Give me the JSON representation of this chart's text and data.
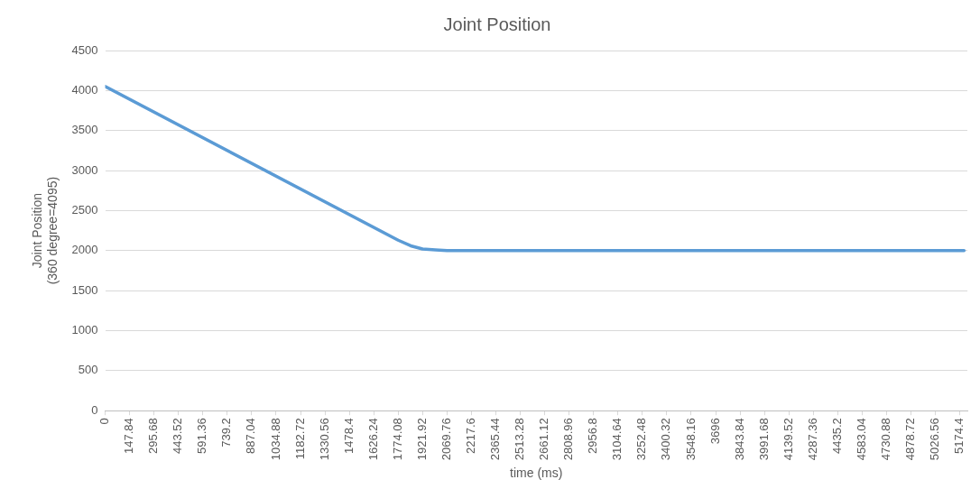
{
  "chart_data": {
    "type": "line",
    "title": "Joint Position",
    "xlabel": "time (ms)",
    "ylabel": "Joint Position\n(360 degree=4095)",
    "series": [
      {
        "color": "#5b9bd5",
        "x": [
          0,
          1774,
          1850,
          1922,
          2000,
          2070,
          5200
        ],
        "values": [
          4050,
          2130,
          2060,
          2020,
          2010,
          2000,
          2000
        ]
      }
    ],
    "xlim": [
      0,
      5220
    ],
    "xticks": [
      0,
      147.84,
      295.68,
      443.52,
      591.36,
      739.2,
      887.04,
      1034.88,
      1182.72,
      1330.56,
      1478.4,
      1626.24,
      1774.08,
      1921.92,
      2069.76,
      2217.6,
      2365.44,
      2513.28,
      2661.12,
      2808.96,
      2956.8,
      3104.64,
      3252.48,
      3400.32,
      3548.16,
      3696,
      3843.84,
      3991.68,
      4139.52,
      4287.36,
      4435.2,
      4583.04,
      4730.88,
      4878.72,
      5026.56,
      5174.4
    ],
    "ylim": [
      0,
      4500
    ],
    "yticks": [
      0,
      500,
      1000,
      1500,
      2000,
      2500,
      3000,
      3500,
      4000,
      4500
    ],
    "grid": "y",
    "legend": false,
    "marker": "none",
    "line_style": "solid"
  }
}
